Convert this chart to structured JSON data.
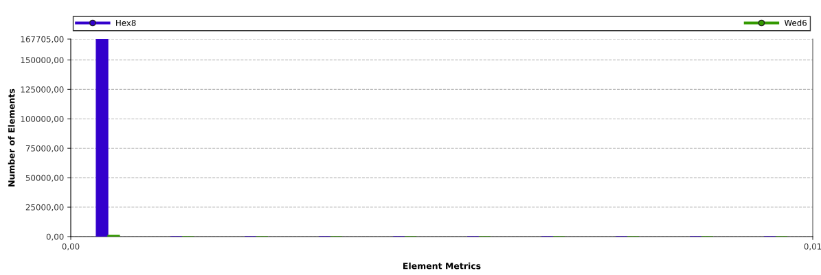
{
  "chart_data": {
    "type": "bar",
    "xlabel": "Element Metrics",
    "ylabel": "Number of Elements",
    "x": [
      0.0005,
      0.0015,
      0.0025,
      0.0035,
      0.0045,
      0.0055,
      0.0065,
      0.0075,
      0.0085,
      0.0095
    ],
    "series": [
      {
        "name": "Hex8",
        "color": "#3300cc",
        "values": [
          167705,
          0,
          0,
          0,
          0,
          0,
          0,
          0,
          0,
          0
        ]
      },
      {
        "name": "Wed6",
        "color": "#339900",
        "values": [
          1000,
          0,
          0,
          0,
          0,
          0,
          0,
          0,
          0,
          0
        ]
      }
    ],
    "xlim": [
      0,
      0.01
    ],
    "xticks": [
      {
        "value": 0,
        "label": "0,00"
      },
      {
        "value": 0.01,
        "label": "0,01"
      }
    ],
    "ylim": [
      0,
      167705
    ],
    "yticks": [
      {
        "value": 0,
        "label": "0,00"
      },
      {
        "value": 25000,
        "label": "25000,00"
      },
      {
        "value": 50000,
        "label": "50000,00"
      },
      {
        "value": 75000,
        "label": "75000,00"
      },
      {
        "value": 100000,
        "label": "100000,00"
      },
      {
        "value": 125000,
        "label": "125000,00"
      },
      {
        "value": 150000,
        "label": "150000,00"
      },
      {
        "value": 167705,
        "label": "167705,00"
      }
    ],
    "grid": "y",
    "legend": "top",
    "marker": "circle"
  }
}
